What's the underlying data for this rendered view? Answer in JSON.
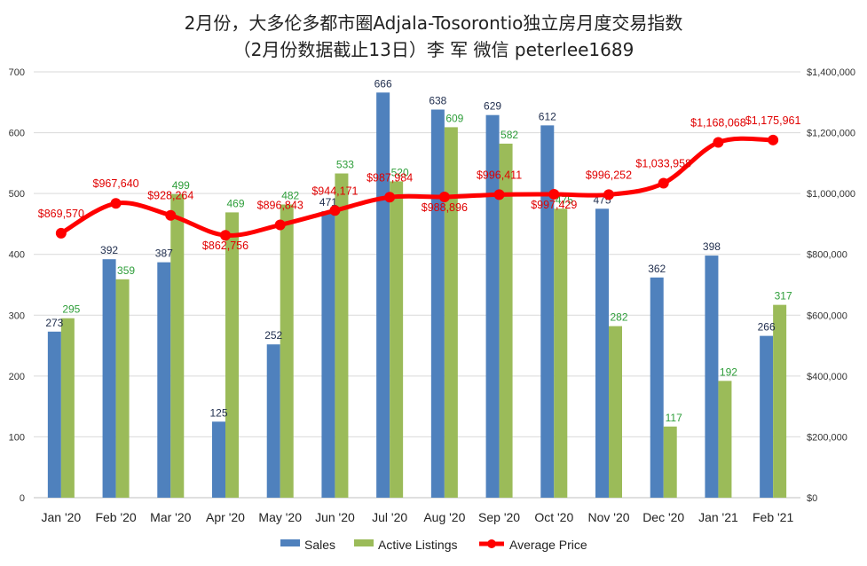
{
  "chart_data": {
    "type": "bar",
    "title": "2月份，大多伦多都市圈Adjala-Tosorontio独立房月度交易指数",
    "subtitle": "（2月份数据截止13日）李 军  微信  peterlee1689",
    "categories": [
      "Jan '20",
      "Feb '20",
      "Mar '20",
      "Apr '20",
      "May '20",
      "Jun '20",
      "Jul '20",
      "Aug '20",
      "Sep '20",
      "Oct '20",
      "Nov '20",
      "Dec '20",
      "Jan '21",
      "Feb '21"
    ],
    "series": [
      {
        "name": "Sales",
        "type": "bar",
        "axis": "left",
        "color": "#4f81bd",
        "values": [
          273,
          392,
          387,
          125,
          252,
          471,
          666,
          638,
          629,
          612,
          475,
          362,
          398,
          266
        ]
      },
      {
        "name": "Active Listings",
        "type": "bar",
        "axis": "left",
        "color": "#9bbb59",
        "values": [
          295,
          359,
          499,
          469,
          482,
          533,
          520,
          609,
          582,
          475,
          282,
          117,
          192,
          317
        ]
      },
      {
        "name": "Average Price",
        "type": "line",
        "axis": "right",
        "color": "#ff0000",
        "values": [
          869570,
          967640,
          928264,
          862756,
          896843,
          944171,
          987984,
          988896,
          996411,
          997429,
          996252,
          1033958,
          1168068,
          1175961
        ]
      }
    ],
    "price_labels": [
      "$869,570",
      "$967,640",
      "$928,264",
      "$862,756",
      "$896,843",
      "$944,171",
      "$987,984",
      "$988,896",
      "$996,411",
      "$997,429",
      "$996,252",
      "$1,033,958",
      "$1,168,068",
      "$1,175,961"
    ],
    "left_axis": {
      "ylim": [
        0,
        700
      ],
      "ticks": [
        0,
        100,
        200,
        300,
        400,
        500,
        600,
        700
      ]
    },
    "right_axis": {
      "ylim": [
        0,
        1400000
      ],
      "tick_labels": [
        "$0",
        "$200,000",
        "$400,000",
        "$600,000",
        "$800,000",
        "$1,000,000",
        "$1,200,000",
        "$1,400,000"
      ]
    },
    "grid": true,
    "legend_position": "bottom"
  }
}
